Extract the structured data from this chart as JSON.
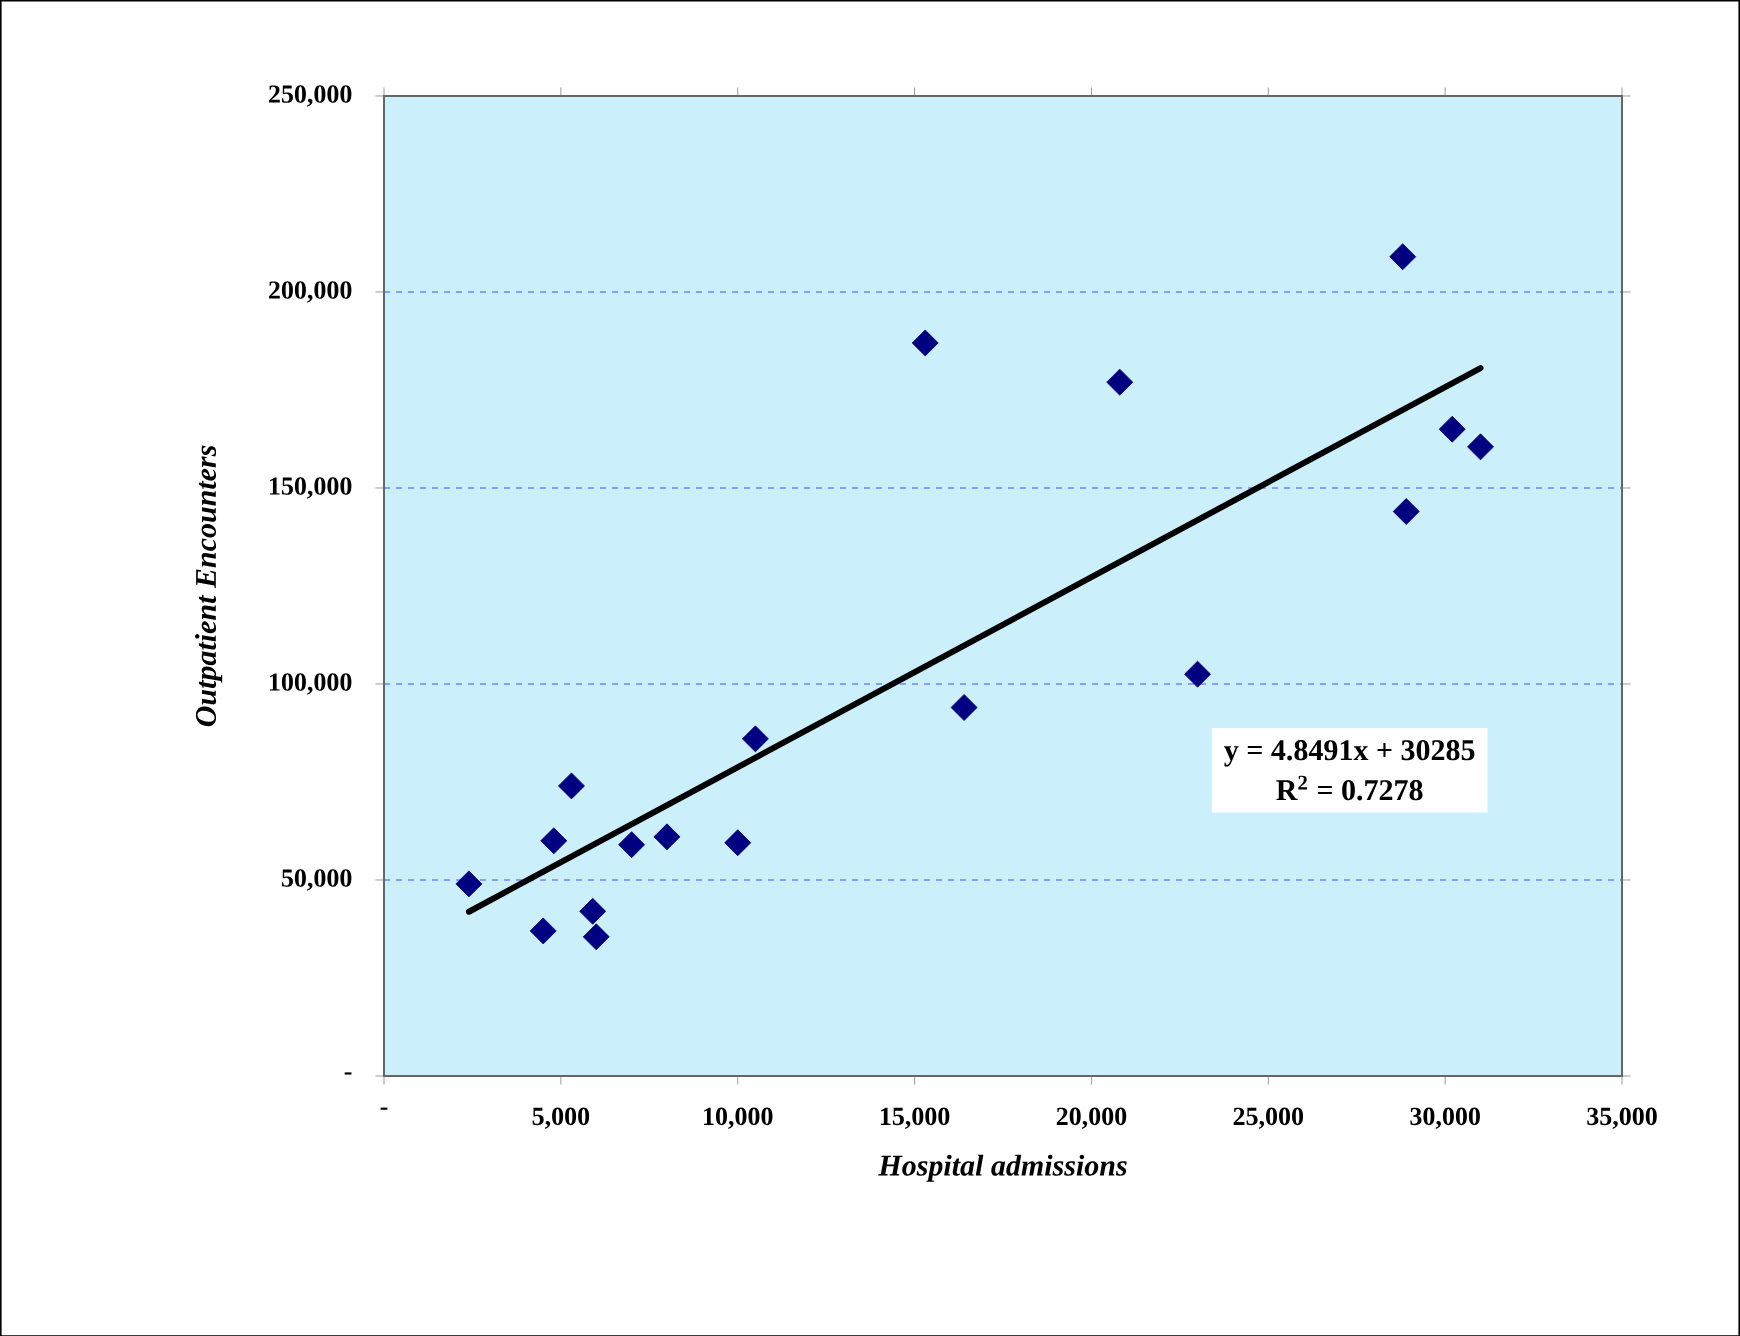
{
  "chart_data": {
    "type": "scatter",
    "xlabel": "Hospital admissions",
    "ylabel": "Outpatient Encounters",
    "xlim": [
      0,
      35000
    ],
    "ylim": [
      0,
      250000
    ],
    "xticks": [
      {
        "value": 0,
        "label": "-"
      },
      {
        "value": 5000,
        "label": "5,000"
      },
      {
        "value": 10000,
        "label": "10,000"
      },
      {
        "value": 15000,
        "label": "15,000"
      },
      {
        "value": 20000,
        "label": "20,000"
      },
      {
        "value": 25000,
        "label": "25,000"
      },
      {
        "value": 30000,
        "label": "30,000"
      },
      {
        "value": 35000,
        "label": "35,000"
      }
    ],
    "yticks": [
      {
        "value": 0,
        "label": "-"
      },
      {
        "value": 50000,
        "label": "50,000"
      },
      {
        "value": 100000,
        "label": "100,000"
      },
      {
        "value": 150000,
        "label": "150,000"
      },
      {
        "value": 200000,
        "label": "200,000"
      },
      {
        "value": 250000,
        "label": "250,000"
      }
    ],
    "grid": "y",
    "series": [
      {
        "marker": "diamond",
        "color": "#000080",
        "x": [
          2400,
          4500,
          4800,
          5300,
          5900,
          6000,
          7000,
          8000,
          10000,
          10500,
          15300,
          16400,
          20800,
          23000,
          28800,
          28900,
          30200,
          31000
        ],
        "values": [
          49000,
          37000,
          60000,
          74000,
          42000,
          35500,
          59000,
          61000,
          59500,
          86000,
          187000,
          94000,
          177000,
          102500,
          209000,
          144000,
          165000,
          160500
        ]
      },
      {
        "type": "line",
        "marker": "none",
        "color": "#000000",
        "x": [
          2400,
          31000
        ],
        "values": [
          41900,
          180600
        ]
      }
    ],
    "annotations": [
      "y = 4.8491x + 30285",
      "R$^{2}$ = 0.7278"
    ]
  }
}
